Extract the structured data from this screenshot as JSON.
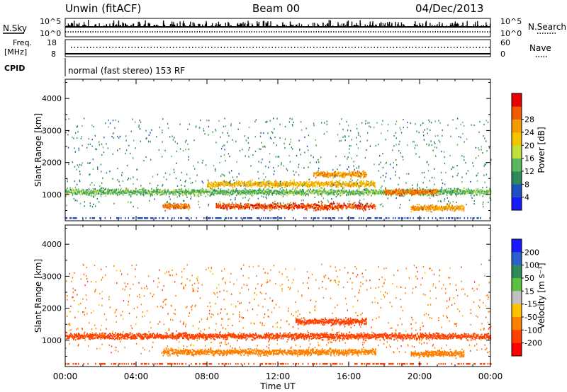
{
  "header": {
    "station": "Unwin (fitACF)",
    "beam": "Beam 00",
    "date": "04/Dec/2013"
  },
  "top_panels": {
    "nsky_label": "N.Sky",
    "nsearch_label": "N.Search",
    "noise_ticks": [
      "10^5",
      "10^0"
    ],
    "freq_label_line1": "Freq.",
    "freq_label_line2": "[MHz]",
    "freq_ticks": [
      "18",
      "8"
    ],
    "nave_label": "Nave",
    "nave_ticks": [
      "60",
      "0"
    ],
    "cpid_label": "CPID",
    "cpid_value": "normal (fast stereo) 153 RF"
  },
  "chart_data": [
    {
      "type": "heatmap",
      "ylabel": "Slant Range [km]",
      "xlabel": "",
      "x_range": [
        "00:00",
        "00:00"
      ],
      "ylim": [
        180,
        4600
      ],
      "y_ticks": [
        "1000",
        "2000",
        "3000",
        "4000"
      ],
      "colorbar": {
        "label": "Power [dB]",
        "ticks": [
          "4",
          "8",
          "12",
          "16",
          "20",
          "24",
          "28"
        ],
        "colors": [
          "#1a1aff",
          "#2050c0",
          "#2e8a5a",
          "#5cb85c",
          "#c0e040",
          "#f5c400",
          "#f59a00",
          "#f05a00",
          "#e60000"
        ]
      },
      "features": [
        {
          "time_start": 0.0,
          "time_end": 24.0,
          "range_km": 1100,
          "power_db": 12
        },
        {
          "time_start": 8.0,
          "time_end": 17.5,
          "range_km": 1350,
          "power_db": 20
        },
        {
          "time_start": 14.0,
          "time_end": 17.0,
          "range_km": 1650,
          "power_db": 22
        },
        {
          "time_start": 18.0,
          "time_end": 21.0,
          "range_km": 1100,
          "power_db": 24
        },
        {
          "time_start": 8.5,
          "time_end": 17.5,
          "range_km": 650,
          "power_db": 26
        },
        {
          "time_start": 5.5,
          "time_end": 7.0,
          "range_km": 650,
          "power_db": 24
        },
        {
          "time_start": 19.5,
          "time_end": 22.5,
          "range_km": 600,
          "power_db": 22
        }
      ]
    },
    {
      "type": "heatmap",
      "ylabel": "Slant Range [km]",
      "xlabel": "Time UT",
      "x_ticks": [
        "00:00",
        "04:00",
        "08:00",
        "12:00",
        "16:00",
        "20:00",
        "00:00"
      ],
      "ylim": [
        180,
        4600
      ],
      "y_ticks": [
        "1000",
        "2000",
        "3000",
        "4000"
      ],
      "colorbar": {
        "label": "Velocity [m s⁻¹]",
        "ticks": [
          "200",
          "100",
          "50",
          "15",
          "-15",
          "-50",
          "-100",
          "-200"
        ],
        "colors": [
          "#1a1aff",
          "#2a60c8",
          "#2e8a5a",
          "#5cc040",
          "#c0c0c0",
          "#ffc000",
          "#ff8000",
          "#ff4000",
          "#ff0000"
        ]
      },
      "features": [
        {
          "time_start": 0.0,
          "time_end": 24.0,
          "range_km": 1150,
          "velocity": -200
        },
        {
          "time_start": 13.0,
          "time_end": 17.0,
          "range_km": 1600,
          "velocity": -200
        },
        {
          "time_start": 5.5,
          "time_end": 17.5,
          "range_km": 650,
          "velocity": -100
        },
        {
          "time_start": 19.5,
          "time_end": 22.5,
          "range_km": 600,
          "velocity": -100
        }
      ]
    }
  ]
}
